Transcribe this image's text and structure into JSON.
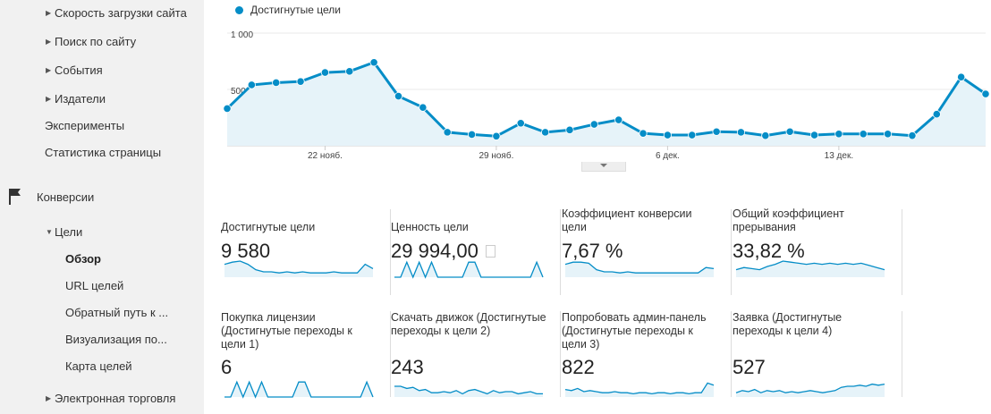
{
  "sidebar": {
    "items": [
      {
        "label": "Скорость загрузки сайта",
        "expandable": true
      },
      {
        "label": "Поиск по сайту",
        "expandable": true
      },
      {
        "label": "События",
        "expandable": true
      },
      {
        "label": "Издатели",
        "expandable": true
      },
      {
        "label": "Эксперименты",
        "expandable": false
      },
      {
        "label": "Статистика страницы",
        "expandable": false
      },
      {
        "label": "Конверсии",
        "icon": "flag-icon"
      },
      {
        "label": "Цели",
        "expanded": true
      },
      {
        "label": "Обзор",
        "active": true
      },
      {
        "label": "URL целей"
      },
      {
        "label": "Обратный путь к ..."
      },
      {
        "label": "Визуализация по..."
      },
      {
        "label": "Карта целей"
      },
      {
        "label": "Электронная торговля",
        "expandable": true
      }
    ]
  },
  "chart_data": {
    "type": "area",
    "legend": [
      "Достигнутые цели"
    ],
    "series": [
      {
        "name": "Достигнутые цели",
        "color": "#058dc7",
        "values": [
          330,
          540,
          560,
          570,
          650,
          660,
          740,
          440,
          340,
          120,
          100,
          85,
          200,
          120,
          140,
          190,
          230,
          110,
          95,
          95,
          125,
          120,
          90,
          125,
          95,
          105,
          105,
          105,
          90,
          280,
          610,
          460
        ]
      }
    ],
    "x_tick_labels": [
      "22 нояб.",
      "29 нояб.",
      "6 дек.",
      "13 дек."
    ],
    "x_tick_index": [
      4,
      11,
      18,
      25
    ],
    "y_tick_labels": [
      "1 000",
      "500"
    ],
    "ylim": [
      0,
      1000
    ],
    "grid": true,
    "legend_position": "top-left"
  },
  "tiles": [
    {
      "label": "Достигнутые цели",
      "value": "9 580",
      "spark": [
        12,
        14,
        15,
        12,
        7,
        5,
        5,
        4,
        5,
        4,
        5,
        4,
        4,
        4,
        5,
        4,
        4,
        4,
        12,
        8
      ]
    },
    {
      "label": "Ценность цели",
      "value": "29 994,00",
      "spark": [
        0,
        0,
        14,
        0,
        14,
        0,
        14,
        0,
        0,
        0,
        0,
        0,
        14,
        14,
        0,
        0,
        0,
        0,
        0,
        0,
        0,
        0,
        0,
        14,
        0
      ]
    },
    {
      "label": "Коэффициент конверсии цели",
      "value": "7,67 %",
      "spark": [
        12,
        14,
        14,
        13,
        7,
        5,
        5,
        4,
        5,
        4,
        4,
        4,
        4,
        4,
        4,
        4,
        4,
        4,
        9,
        8
      ]
    },
    {
      "label": "Общий коэффициент прерывания",
      "value": "33,82 %",
      "spark": [
        7,
        9,
        8,
        7,
        10,
        12,
        15,
        14,
        13,
        12,
        13,
        12,
        13,
        12,
        13,
        12,
        13,
        11,
        9,
        7
      ]
    },
    {
      "label": "Покупка лицензии (Достигнутые переходы к цели 1)",
      "value": "6",
      "spark": [
        0,
        0,
        14,
        0,
        14,
        0,
        14,
        0,
        0,
        0,
        0,
        0,
        14,
        14,
        0,
        0,
        0,
        0,
        0,
        0,
        0,
        0,
        0,
        14,
        0
      ]
    },
    {
      "label": "Скачать движок (Достигнутые переходы к цели 2)",
      "value": "243",
      "spark": [
        10,
        10,
        8,
        9,
        6,
        7,
        4,
        4,
        5,
        4,
        6,
        3,
        6,
        7,
        5,
        3,
        6,
        4,
        5,
        5,
        3,
        4,
        5,
        3,
        3
      ]
    },
    {
      "label": "Попробовать админ-панель (Достигнутые переходы к цели 3)",
      "value": "822",
      "spark": [
        7,
        6,
        8,
        5,
        6,
        5,
        4,
        4,
        5,
        4,
        4,
        3,
        4,
        4,
        3,
        4,
        4,
        3,
        4,
        4,
        3,
        4,
        4,
        13,
        11
      ]
    },
    {
      "label": "Заявка (Достигнутые переходы к цели 4)",
      "value": "527",
      "spark": [
        4,
        6,
        5,
        7,
        4,
        6,
        5,
        6,
        4,
        5,
        4,
        5,
        6,
        5,
        4,
        5,
        6,
        9,
        10,
        10,
        11,
        10,
        12,
        11,
        12
      ]
    }
  ]
}
